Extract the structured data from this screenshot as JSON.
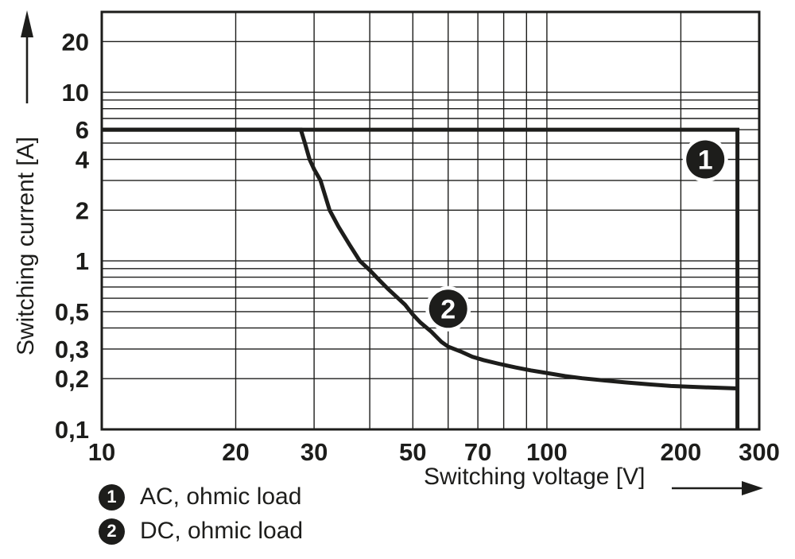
{
  "colors": {
    "ink": "#1d1d1b",
    "background": "#ffffff",
    "badge_fill": "#1d1d1b",
    "badge_text": "#ffffff"
  },
  "chart_data": {
    "type": "line",
    "title": "",
    "x_axis": {
      "label": "Switching voltage [V]",
      "scale": "log",
      "range": [
        10,
        300
      ],
      "ticks": [
        {
          "v": 10,
          "label": "10"
        },
        {
          "v": 20,
          "label": "20"
        },
        {
          "v": 30,
          "label": "30"
        },
        {
          "v": 50,
          "label": "50"
        },
        {
          "v": 70,
          "label": "70"
        },
        {
          "v": 100,
          "label": "100"
        },
        {
          "v": 200,
          "label": "200"
        },
        {
          "v": 300,
          "label": "300"
        }
      ],
      "gridlines": [
        10,
        20,
        30,
        40,
        50,
        60,
        70,
        80,
        90,
        100,
        200,
        300
      ]
    },
    "y_axis": {
      "label": "Switching current [A]",
      "scale": "log",
      "range": [
        0.1,
        30
      ],
      "ticks": [
        {
          "v": 20,
          "label": "20"
        },
        {
          "v": 10,
          "label": "10"
        },
        {
          "v": 6,
          "label": "6"
        },
        {
          "v": 4,
          "label": "4"
        },
        {
          "v": 2,
          "label": "2"
        },
        {
          "v": 1,
          "label": "1"
        },
        {
          "v": 0.5,
          "label": "0,5"
        },
        {
          "v": 0.3,
          "label": "0,3"
        },
        {
          "v": 0.2,
          "label": "0,2"
        },
        {
          "v": 0.1,
          "label": "0,1"
        }
      ],
      "gridlines": [
        0.1,
        0.2,
        0.3,
        0.4,
        0.5,
        0.6,
        0.7,
        0.8,
        0.9,
        1,
        2,
        3,
        4,
        5,
        6,
        7,
        8,
        9,
        10,
        20,
        30
      ]
    },
    "series": [
      {
        "name": "AC, ohmic load",
        "marker": "1",
        "points": [
          [
            10,
            6
          ],
          [
            268,
            6
          ],
          [
            268,
            0.1
          ]
        ]
      },
      {
        "name": "DC, ohmic load",
        "marker": "2",
        "points": [
          [
            10,
            6
          ],
          [
            28,
            6
          ],
          [
            28.6,
            5
          ],
          [
            29.3,
            4
          ],
          [
            30,
            3.5
          ],
          [
            31,
            3
          ],
          [
            32.5,
            2
          ],
          [
            34,
            1.6
          ],
          [
            36,
            1.25
          ],
          [
            38,
            1.0
          ],
          [
            40,
            0.88
          ],
          [
            42,
            0.77
          ],
          [
            44,
            0.68
          ],
          [
            46,
            0.61
          ],
          [
            48,
            0.55
          ],
          [
            50,
            0.48
          ],
          [
            52,
            0.43
          ],
          [
            55,
            0.38
          ],
          [
            58,
            0.33
          ],
          [
            60,
            0.31
          ],
          [
            64,
            0.29
          ],
          [
            68,
            0.27
          ],
          [
            72,
            0.258
          ],
          [
            78,
            0.245
          ],
          [
            85,
            0.233
          ],
          [
            92,
            0.224
          ],
          [
            100,
            0.216
          ],
          [
            110,
            0.207
          ],
          [
            120,
            0.201
          ],
          [
            135,
            0.195
          ],
          [
            150,
            0.19
          ],
          [
            170,
            0.185
          ],
          [
            190,
            0.181
          ],
          [
            210,
            0.179
          ],
          [
            235,
            0.177
          ],
          [
            268,
            0.175
          ]
        ]
      }
    ],
    "annotations": [
      {
        "label": "1",
        "at": [
          227,
          4.0
        ]
      },
      {
        "label": "2",
        "at": [
          60,
          0.52
        ]
      }
    ],
    "legend": [
      {
        "marker": "1",
        "label": "AC, ohmic load"
      },
      {
        "marker": "2",
        "label": "DC, ohmic load"
      }
    ]
  }
}
